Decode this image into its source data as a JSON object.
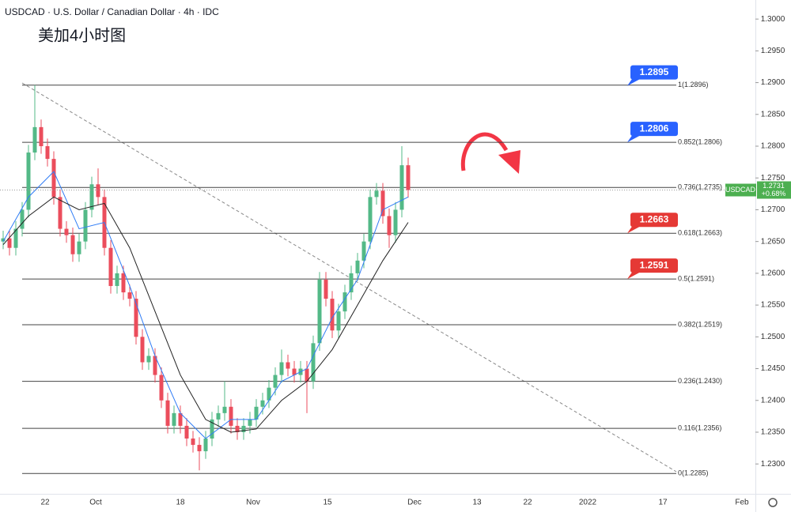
{
  "header": {
    "title": "USDCAD · U.S. Dollar / Canadian Dollar · 4h · IDC",
    "subtitle": "美加4小时图"
  },
  "chart_data": {
    "type": "candlestick",
    "up_color": "#53b987",
    "down_color": "#eb4d5c",
    "open": [
      1.265,
      1.2655,
      1.264,
      1.267,
      1.27,
      1.279,
      1.283,
      1.28,
      1.278,
      1.272,
      1.267,
      1.266,
      1.263,
      1.265,
      1.27,
      1.274,
      1.272,
      1.264,
      1.258,
      1.26,
      1.257,
      1.256,
      1.25,
      1.246,
      1.247,
      1.244,
      1.24,
      1.236,
      1.238,
      1.236,
      1.234,
      1.233,
      1.232,
      1.234,
      1.237,
      1.238,
      1.239,
      1.236,
      1.235,
      1.236,
      1.237,
      1.239,
      1.24,
      1.242,
      1.244,
      1.246,
      1.245,
      1.244,
      1.245,
      1.243,
      1.249,
      1.259,
      1.256,
      1.251,
      1.254,
      1.257,
      1.26,
      1.262,
      1.265,
      1.272,
      1.273,
      1.269,
      1.266,
      1.27,
      1.277
    ],
    "high": [
      1.2667,
      1.2667,
      1.2682,
      1.2712,
      1.2802,
      1.2896,
      1.2842,
      1.2812,
      1.2792,
      1.2732,
      1.2682,
      1.2672,
      1.2662,
      1.2712,
      1.2752,
      1.2765,
      1.2732,
      1.2652,
      1.2612,
      1.2612,
      1.2582,
      1.2572,
      1.2512,
      1.2482,
      1.2482,
      1.2452,
      1.2412,
      1.2392,
      1.2392,
      1.2372,
      1.2352,
      1.2342,
      1.2352,
      1.2382,
      1.2392,
      1.243,
      1.2402,
      1.2372,
      1.2372,
      1.2382,
      1.2402,
      1.2412,
      1.2432,
      1.2452,
      1.248,
      1.2472,
      1.2462,
      1.2462,
      1.2462,
      1.2502,
      1.2602,
      1.2602,
      1.2572,
      1.2552,
      1.2582,
      1.2612,
      1.2632,
      1.2662,
      1.2732,
      1.2742,
      1.2742,
      1.2702,
      1.2712,
      1.28,
      1.2782
    ],
    "low": [
      1.2638,
      1.2628,
      1.2628,
      1.2658,
      1.2688,
      1.2778,
      1.2788,
      1.2768,
      1.2708,
      1.2658,
      1.2648,
      1.2618,
      1.2618,
      1.2638,
      1.2688,
      1.2708,
      1.2628,
      1.2568,
      1.2568,
      1.2558,
      1.2548,
      1.2488,
      1.2448,
      1.2448,
      1.2428,
      1.2388,
      1.2348,
      1.2348,
      1.2348,
      1.2328,
      1.2318,
      1.229,
      1.2308,
      1.2328,
      1.2358,
      1.2368,
      1.2348,
      1.2338,
      1.2338,
      1.2348,
      1.2358,
      1.2378,
      1.2388,
      1.2408,
      1.2428,
      1.2438,
      1.2428,
      1.2428,
      1.238,
      1.2418,
      1.2478,
      1.2548,
      1.2498,
      1.2498,
      1.2528,
      1.2558,
      1.2588,
      1.2608,
      1.2638,
      1.2708,
      1.2678,
      1.264,
      1.2648,
      1.2688,
      1.2719
    ],
    "close": [
      1.2655,
      1.264,
      1.267,
      1.27,
      1.279,
      1.283,
      1.28,
      1.278,
      1.272,
      1.267,
      1.266,
      1.263,
      1.265,
      1.27,
      1.274,
      1.272,
      1.264,
      1.258,
      1.26,
      1.257,
      1.256,
      1.25,
      1.246,
      1.247,
      1.244,
      1.24,
      1.236,
      1.238,
      1.236,
      1.234,
      1.233,
      1.232,
      1.234,
      1.237,
      1.238,
      1.239,
      1.236,
      1.235,
      1.236,
      1.237,
      1.239,
      1.24,
      1.242,
      1.244,
      1.246,
      1.245,
      1.244,
      1.245,
      1.243,
      1.249,
      1.259,
      1.256,
      1.251,
      1.254,
      1.257,
      1.26,
      1.262,
      1.265,
      1.272,
      1.273,
      1.269,
      1.266,
      1.27,
      1.277,
      1.2731
    ],
    "series": [
      {
        "color": "#2f7cf6",
        "x": [
          0,
          4,
          8,
          12,
          16,
          20,
          24,
          28,
          32,
          36,
          40,
          44,
          48,
          52,
          56,
          60,
          64
        ],
        "values": [
          1.265,
          1.272,
          1.276,
          1.267,
          1.268,
          1.258,
          1.247,
          1.238,
          1.234,
          1.237,
          1.237,
          1.243,
          1.245,
          1.253,
          1.259,
          1.27,
          1.272
        ]
      },
      {
        "color": "#222222",
        "x": [
          0,
          4,
          8,
          12,
          16,
          20,
          24,
          28,
          32,
          36,
          40,
          44,
          48,
          52,
          56,
          60,
          64
        ],
        "values": [
          1.2645,
          1.269,
          1.272,
          1.27,
          1.271,
          1.264,
          1.254,
          1.244,
          1.237,
          1.235,
          1.2355,
          1.24,
          1.243,
          1.248,
          1.255,
          1.262,
          1.268
        ]
      }
    ],
    "x_labels": [
      "22",
      "Oct",
      "18",
      "Nov",
      "15",
      "Dec",
      "13",
      "22",
      "2022",
      "17",
      "Feb"
    ],
    "ylim": [
      1.2253,
      1.303
    ],
    "yticks": [
      {
        "value": 1.23,
        "label": "1.2300"
      },
      {
        "value": 1.235,
        "label": "1.2350"
      },
      {
        "value": 1.24,
        "label": "1.2400"
      },
      {
        "value": 1.245,
        "label": "1.2450"
      },
      {
        "value": 1.25,
        "label": "1.2500"
      },
      {
        "value": 1.255,
        "label": "1.2550"
      },
      {
        "value": 1.26,
        "label": "1.2600"
      },
      {
        "value": 1.265,
        "label": "1.2650"
      },
      {
        "value": 1.27,
        "label": "1.2700"
      },
      {
        "value": 1.275,
        "label": "1.2750"
      },
      {
        "value": 1.28,
        "label": "1.2800"
      },
      {
        "value": 1.285,
        "label": "1.2850"
      },
      {
        "value": 1.29,
        "label": "1.2900"
      },
      {
        "value": 1.295,
        "label": "1.2950"
      },
      {
        "value": 1.3,
        "label": "1.3000"
      }
    ],
    "fib_levels": [
      {
        "value": 1.2896,
        "label": "1(1.2896)"
      },
      {
        "value": 1.2806,
        "label": "0.852(1.2806)"
      },
      {
        "value": 1.2735,
        "label": "0.736(1.2735)"
      },
      {
        "value": 1.2663,
        "label": "0.618(1.2663)"
      },
      {
        "value": 1.2591,
        "label": "0.5(1.2591)"
      },
      {
        "value": 1.2519,
        "label": "0.382(1.2519)"
      },
      {
        "value": 1.243,
        "label": "0.236(1.2430)"
      },
      {
        "value": 1.2356,
        "label": "0.116(1.2356)"
      },
      {
        "value": 1.2285,
        "label": "0(1.2285)"
      }
    ],
    "annotations": [
      {
        "value": 1.2895,
        "color": "#2962ff"
      },
      {
        "value": 1.2806,
        "color": "#2962ff"
      },
      {
        "value": 1.2663,
        "color": "#e53935"
      },
      {
        "value": 1.2591,
        "color": "#e53935"
      }
    ],
    "price": {
      "symbol": "USDCAD",
      "value": 1.2731,
      "change": "+0.68%",
      "color": "#4caf50"
    }
  }
}
